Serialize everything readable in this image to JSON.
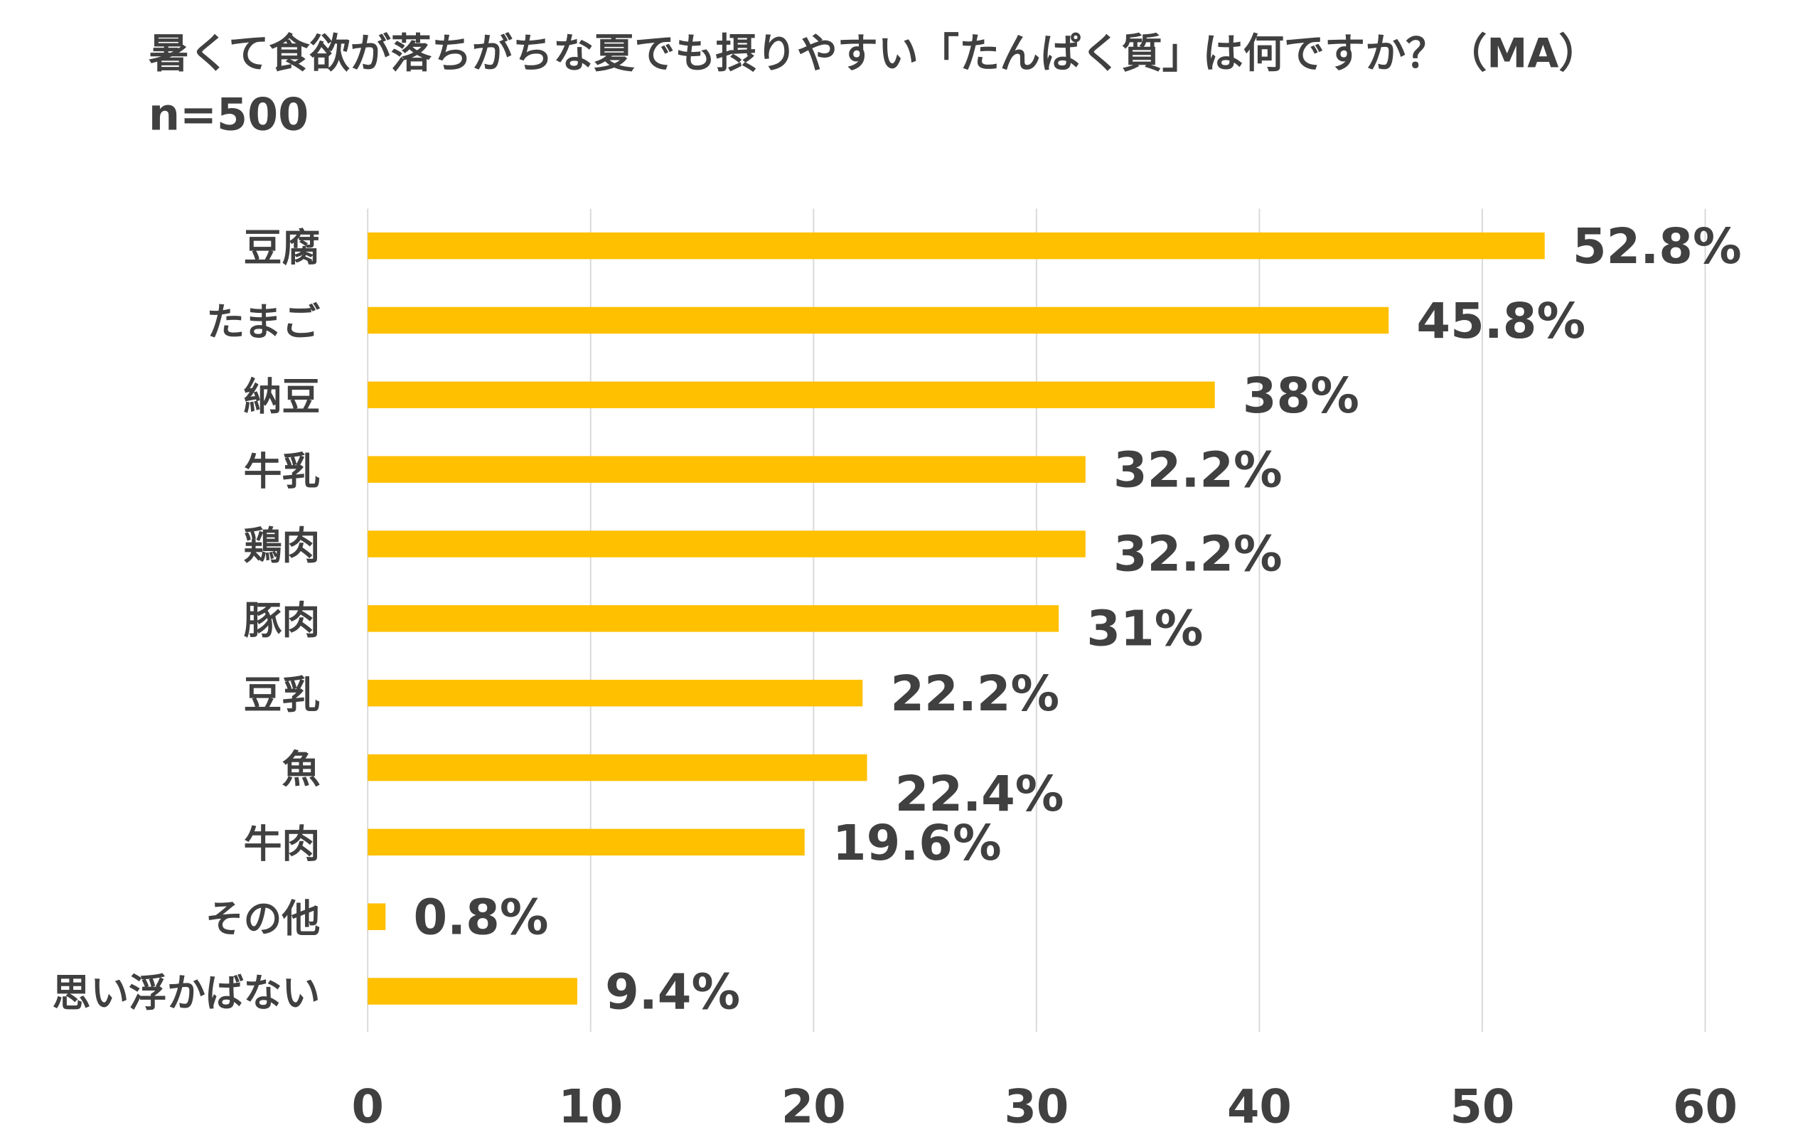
{
  "chart_data": {
    "type": "bar",
    "orientation": "horizontal",
    "title": "暑くて食欲が落ちがちな夏でも摂りやすい「たんぱく質」は何ですか？（MA）",
    "subtitle": "n=500",
    "categories": [
      "豆腐",
      "たまご",
      "納豆",
      "牛乳",
      "鶏肉",
      "豚肉",
      "豆乳",
      "魚",
      "牛肉",
      "その他",
      "思い浮かばない"
    ],
    "values": [
      52.8,
      45.8,
      38,
      32.2,
      32.2,
      31,
      22.2,
      22.4,
      19.6,
      0.8,
      9.4
    ],
    "data_labels": [
      "52.8%",
      "45.8%",
      "38%",
      "32.2%",
      "32.2%",
      "31%",
      "22.2%",
      "22.4%",
      "19.6%",
      "0.8%",
      "9.4%"
    ],
    "xlim": [
      0,
      60
    ],
    "xticks": [
      "0",
      "10",
      "20",
      "30",
      "40",
      "50",
      "60"
    ],
    "xlabel": "",
    "ylabel": "",
    "grid": true,
    "bar_color": "#FFC000",
    "text_color": "#404040",
    "grid_color": "#D9D9D9"
  }
}
